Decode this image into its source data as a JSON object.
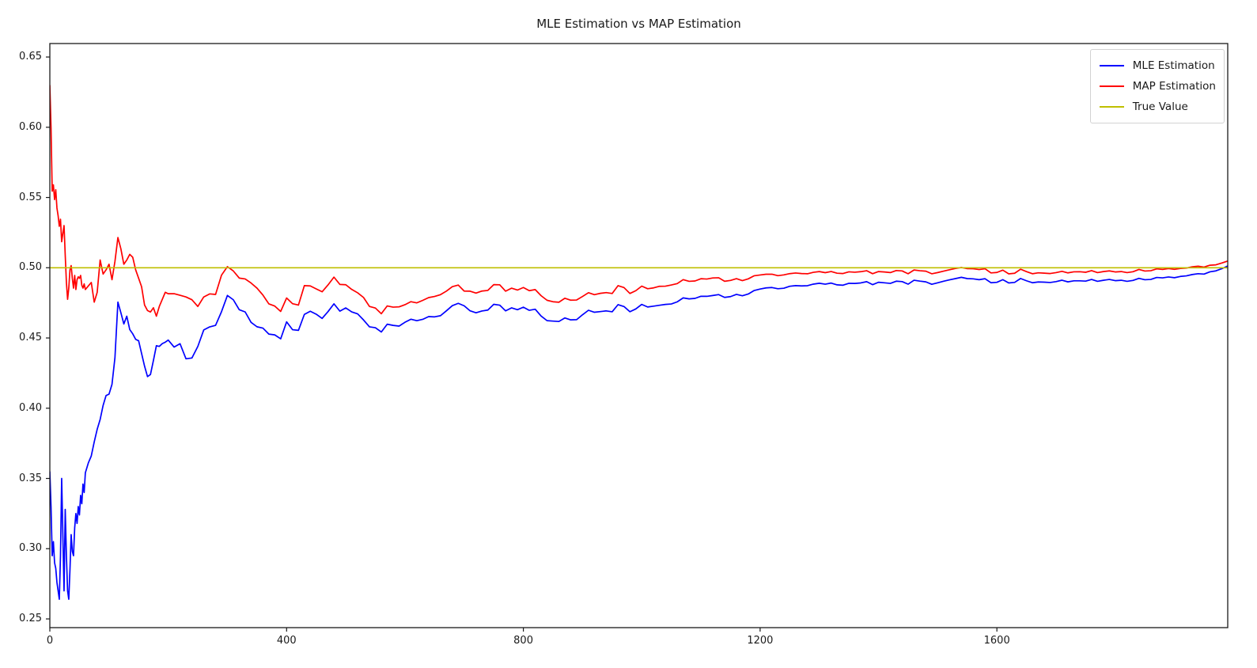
{
  "chart_data": {
    "type": "line",
    "title": "MLE Estimation vs MAP Estimation",
    "xlabel": "",
    "ylabel": "",
    "xlim": [
      0,
      1990
    ],
    "ylim": [
      0.2438,
      0.6596
    ],
    "x_ticks": [
      0,
      400,
      800,
      1200,
      1600
    ],
    "y_ticks": [
      0.25,
      0.3,
      0.35,
      0.4,
      0.45,
      0.5,
      0.55,
      0.6,
      0.65
    ],
    "grid": false,
    "legend_position": "upper right",
    "background_color": "#ffffff",
    "axis_color": "#1a1a1a",
    "x": [
      0,
      2,
      4,
      6,
      8,
      10,
      12,
      14,
      16,
      18,
      20,
      22,
      24,
      26,
      28,
      30,
      32,
      34,
      36,
      38,
      40,
      42,
      44,
      46,
      48,
      50,
      52,
      54,
      56,
      58,
      60,
      65,
      70,
      75,
      80,
      85,
      90,
      95,
      100,
      105,
      110,
      115,
      120,
      125,
      130,
      135,
      140,
      145,
      150,
      155,
      160,
      165,
      170,
      175,
      180,
      185,
      190,
      195,
      200,
      210,
      220,
      230,
      240,
      250,
      260,
      270,
      280,
      290,
      300,
      310,
      320,
      330,
      340,
      350,
      360,
      370,
      380,
      390,
      400,
      410,
      420,
      430,
      440,
      450,
      460,
      470,
      480,
      490,
      500,
      510,
      520,
      530,
      540,
      550,
      560,
      570,
      580,
      590,
      600,
      610,
      620,
      630,
      640,
      650,
      660,
      670,
      680,
      690,
      700,
      710,
      720,
      730,
      740,
      750,
      760,
      770,
      780,
      790,
      800,
      810,
      820,
      830,
      840,
      850,
      860,
      870,
      880,
      890,
      900,
      910,
      920,
      930,
      940,
      950,
      960,
      970,
      980,
      990,
      1000,
      1010,
      1020,
      1030,
      1040,
      1050,
      1060,
      1070,
      1080,
      1090,
      1100,
      1110,
      1120,
      1130,
      1140,
      1150,
      1160,
      1170,
      1180,
      1190,
      1200,
      1210,
      1220,
      1230,
      1240,
      1250,
      1260,
      1270,
      1280,
      1290,
      1300,
      1310,
      1320,
      1330,
      1340,
      1350,
      1360,
      1370,
      1380,
      1390,
      1400,
      1410,
      1420,
      1430,
      1440,
      1450,
      1460,
      1470,
      1480,
      1490,
      1500,
      1510,
      1520,
      1530,
      1540,
      1550,
      1560,
      1570,
      1580,
      1590,
      1600,
      1610,
      1620,
      1630,
      1640,
      1650,
      1660,
      1670,
      1680,
      1690,
      1700,
      1710,
      1720,
      1730,
      1740,
      1750,
      1760,
      1770,
      1780,
      1790,
      1800,
      1810,
      1820,
      1830,
      1840,
      1850,
      1860,
      1870,
      1880,
      1890,
      1900,
      1910,
      1920,
      1930,
      1940,
      1950,
      1960,
      1970,
      1980,
      1990
    ],
    "series": [
      {
        "name": "MLE Estimation",
        "color": "#0000ff",
        "values": [
          0.355,
          0.33,
          0.295,
          0.305,
          0.29,
          0.286,
          0.276,
          0.27,
          0.264,
          0.295,
          0.35,
          0.31,
          0.27,
          0.328,
          0.295,
          0.27,
          0.264,
          0.285,
          0.31,
          0.298,
          0.295,
          0.315,
          0.325,
          0.318,
          0.33,
          0.324,
          0.338,
          0.332,
          0.346,
          0.34,
          0.354,
          0.361,
          0.366,
          0.376,
          0.385,
          0.392,
          0.402,
          0.409,
          0.41,
          0.417,
          0.436,
          0.4755,
          0.468,
          0.46,
          0.4655,
          0.456,
          0.453,
          0.449,
          0.448,
          0.439,
          0.43,
          0.4225,
          0.424,
          0.434,
          0.4445,
          0.444,
          0.446,
          0.447,
          0.4485,
          0.4455,
          0.4475,
          0.4365,
          0.435,
          0.4425,
          0.455,
          0.4575,
          0.4605,
          0.468,
          0.48,
          0.4755,
          0.4715,
          0.469,
          0.46,
          0.458,
          0.455,
          0.453,
          0.451,
          0.4475,
          0.461,
          0.456,
          0.456,
          0.465,
          0.468,
          0.465,
          0.466,
          0.469,
          0.4745,
          0.47,
          0.4715,
          0.468,
          0.465,
          0.4625,
          0.458,
          0.456,
          0.456,
          0.4605,
          0.459,
          0.459,
          0.4615,
          0.4625,
          0.4635,
          0.4635,
          0.464,
          0.4645,
          0.4665,
          0.47,
          0.4725,
          0.4735,
          0.4735,
          0.468,
          0.469,
          0.469,
          0.471,
          0.4725,
          0.472,
          0.468,
          0.47,
          0.4715,
          0.471,
          0.4705,
          0.47,
          0.4645,
          0.4625,
          0.4622,
          0.4625,
          0.4635,
          0.4625,
          0.4645,
          0.468,
          0.469,
          0.4685,
          0.469,
          0.4705,
          0.47,
          0.4725,
          0.4715,
          0.468,
          0.47,
          0.4735,
          0.4725,
          0.472,
          0.4745,
          0.474,
          0.4755,
          0.475,
          0.4775,
          0.4785,
          0.4788,
          0.479,
          0.4795,
          0.479,
          0.48,
          0.48,
          0.4805,
          0.481,
          0.4812,
          0.482,
          0.4835,
          0.485,
          0.4855,
          0.486,
          0.4855,
          0.485,
          0.4868,
          0.4865,
          0.4872,
          0.488,
          0.4878,
          0.4885,
          0.489,
          0.4888,
          0.4885,
          0.4882,
          0.489,
          0.4895,
          0.4892,
          0.4898,
          0.488,
          0.4892,
          0.4895,
          0.4888,
          0.4898,
          0.4902,
          0.4878,
          0.4915,
          0.4908,
          0.4902,
          0.489,
          0.4885,
          0.4898,
          0.4908,
          0.492,
          0.4928,
          0.4925,
          0.4918,
          0.4922,
          0.4925,
          0.489,
          0.49,
          0.491,
          0.4895,
          0.49,
          0.4922,
          0.4905,
          0.4898,
          0.4895,
          0.4898,
          0.4902,
          0.4908,
          0.4912,
          0.4898,
          0.4908,
          0.49,
          0.4905,
          0.4912,
          0.4908,
          0.4912,
          0.4915,
          0.4912,
          0.4918,
          0.491,
          0.4908,
          0.4922,
          0.4918,
          0.492,
          0.4925,
          0.4935,
          0.4928,
          0.4932,
          0.4938,
          0.494,
          0.4945,
          0.4952,
          0.4958,
          0.4975,
          0.4985,
          0.5,
          0.5015
        ]
      },
      {
        "name": "MAP Estimation",
        "color": "#ff0000",
        "values": [
          0.63,
          0.6,
          0.5545,
          0.559,
          0.5485,
          0.5555,
          0.5425,
          0.537,
          0.5295,
          0.5345,
          0.5185,
          0.5245,
          0.53,
          0.509,
          0.4895,
          0.4775,
          0.4855,
          0.4985,
          0.5015,
          0.4925,
          0.4855,
          0.4945,
          0.4845,
          0.4915,
          0.4935,
          0.4925,
          0.4945,
          0.4875,
          0.4855,
          0.4885,
          0.4845,
          0.487,
          0.4895,
          0.4755,
          0.4825,
          0.5055,
          0.4955,
          0.4985,
          0.5025,
          0.4915,
          0.5045,
          0.5215,
          0.5135,
          0.5025,
          0.5055,
          0.5095,
          0.5075,
          0.4985,
          0.4925,
          0.4865,
          0.4735,
          0.4695,
          0.4685,
          0.4715,
          0.4655,
          0.4725,
          0.4775,
          0.4825,
          0.4815,
          0.4835,
          0.482,
          0.4805,
          0.4765,
          0.471,
          0.4785,
          0.481,
          0.4825,
          0.494,
          0.5005,
          0.496,
          0.494,
          0.4925,
          0.488,
          0.4855,
          0.4785,
          0.4745,
          0.4715,
          0.467,
          0.478,
          0.4745,
          0.474,
          0.4855,
          0.486,
          0.483,
          0.485,
          0.488,
          0.4935,
          0.489,
          0.488,
          0.484,
          0.48,
          0.4785,
          0.4725,
          0.47,
          0.469,
          0.4735,
          0.472,
          0.4727,
          0.474,
          0.475,
          0.4762,
          0.477,
          0.4775,
          0.479,
          0.4815,
          0.484,
          0.486,
          0.4865,
          0.484,
          0.482,
          0.483,
          0.4832,
          0.485,
          0.4865,
          0.4865,
          0.482,
          0.484,
          0.4855,
          0.485,
          0.4845,
          0.484,
          0.479,
          0.477,
          0.476,
          0.4762,
          0.4775,
          0.4765,
          0.4785,
          0.481,
          0.4815,
          0.481,
          0.482,
          0.4835,
          0.483,
          0.486,
          0.485,
          0.481,
          0.483,
          0.4865,
          0.4855,
          0.485,
          0.488,
          0.487,
          0.489,
          0.488,
          0.4905,
          0.491,
          0.4912,
          0.4915,
          0.4918,
          0.4915,
          0.492,
          0.4915,
          0.492,
          0.4922,
          0.492,
          0.4928,
          0.494,
          0.495,
          0.4952,
          0.4955,
          0.4948,
          0.4945,
          0.4958,
          0.4955,
          0.496,
          0.4965,
          0.4962,
          0.4968,
          0.4972,
          0.497,
          0.4968,
          0.4965,
          0.4972,
          0.4975,
          0.4972,
          0.4976,
          0.4958,
          0.4968,
          0.4972,
          0.4965,
          0.4974,
          0.4978,
          0.4952,
          0.4988,
          0.4982,
          0.4978,
          0.4965,
          0.4958,
          0.497,
          0.498,
          0.4992,
          0.4998,
          0.4996,
          0.499,
          0.4994,
          0.4996,
          0.496,
          0.497,
          0.4978,
          0.496,
          0.4965,
          0.4988,
          0.497,
          0.4962,
          0.496,
          0.4962,
          0.4966,
          0.4972,
          0.4975,
          0.4962,
          0.4972,
          0.4965,
          0.4968,
          0.4975,
          0.497,
          0.4974,
          0.4976,
          0.4974,
          0.498,
          0.4972,
          0.497,
          0.4985,
          0.498,
          0.4982,
          0.4986,
          0.4995,
          0.4988,
          0.4992,
          0.4995,
          0.4996,
          0.5,
          0.5005,
          0.5008,
          0.5022,
          0.5028,
          0.504,
          0.505
        ]
      },
      {
        "name": "True Value",
        "color": "#bfbf00",
        "constant": 0.5
      }
    ]
  },
  "legend": {
    "items": [
      {
        "label": "MLE Estimation",
        "color": "#0000ff"
      },
      {
        "label": "MAP Estimation",
        "color": "#ff0000"
      },
      {
        "label": "True Value",
        "color": "#bfbf00"
      }
    ]
  }
}
